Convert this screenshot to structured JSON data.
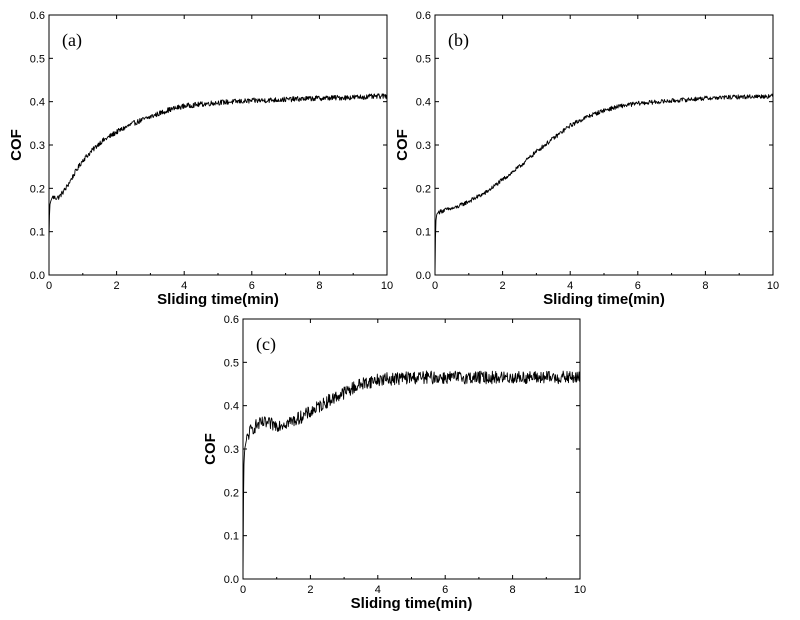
{
  "figure": {
    "panels": [
      "(a)",
      "(b)",
      "(c)"
    ]
  },
  "chart_data": [
    {
      "type": "line",
      "panel_label": "(a)",
      "xlabel": "Sliding time(min)",
      "ylabel": "COF",
      "xlim": [
        0,
        10
      ],
      "ylim": [
        0,
        0.6
      ],
      "xticks": [
        0,
        2,
        4,
        6,
        8,
        10
      ],
      "yticks": [
        0.0,
        0.1,
        0.2,
        0.3,
        0.4,
        0.5,
        0.6
      ],
      "grid": false,
      "noise_amplitude": 0.006,
      "series": [
        {
          "x": [
            0,
            0.02,
            0.05,
            0.1,
            0.2,
            0.3,
            0.5,
            0.8,
            1.0,
            1.5,
            2.0,
            2.5,
            3.0,
            3.5,
            4.0,
            5.0,
            6.0,
            7.0,
            8.0,
            9.0,
            10.0
          ],
          "y": [
            0.08,
            0.16,
            0.17,
            0.18,
            0.178,
            0.18,
            0.2,
            0.24,
            0.265,
            0.305,
            0.33,
            0.35,
            0.365,
            0.38,
            0.39,
            0.398,
            0.402,
            0.405,
            0.408,
            0.41,
            0.413
          ]
        }
      ]
    },
    {
      "type": "line",
      "panel_label": "(b)",
      "xlabel": "Sliding time(min)",
      "ylabel": "COF",
      "xlim": [
        0,
        10
      ],
      "ylim": [
        0,
        0.6
      ],
      "xticks": [
        0,
        2,
        4,
        6,
        8,
        10
      ],
      "yticks": [
        0.0,
        0.1,
        0.2,
        0.3,
        0.4,
        0.5,
        0.6
      ],
      "grid": false,
      "noise_amplitude": 0.005,
      "series": [
        {
          "x": [
            0,
            0.02,
            0.05,
            0.1,
            0.3,
            0.6,
            1.0,
            1.5,
            2.0,
            2.5,
            3.0,
            3.5,
            4.0,
            4.5,
            5.0,
            5.5,
            6.0,
            7.0,
            8.0,
            9.0,
            10.0
          ],
          "y": [
            0.0,
            0.12,
            0.14,
            0.145,
            0.15,
            0.155,
            0.17,
            0.19,
            0.22,
            0.25,
            0.285,
            0.315,
            0.345,
            0.365,
            0.38,
            0.39,
            0.396,
            0.402,
            0.408,
            0.411,
            0.413
          ]
        }
      ]
    },
    {
      "type": "line",
      "panel_label": "(c)",
      "xlabel": "Sliding time(min)",
      "ylabel": "COF",
      "xlim": [
        0,
        10
      ],
      "ylim": [
        0,
        0.6
      ],
      "xticks": [
        0,
        2,
        4,
        6,
        8,
        10
      ],
      "yticks": [
        0.0,
        0.1,
        0.2,
        0.3,
        0.4,
        0.5,
        0.6
      ],
      "grid": false,
      "noise_amplitude": 0.015,
      "series": [
        {
          "x": [
            0,
            0.02,
            0.05,
            0.1,
            0.2,
            0.4,
            0.6,
            1.0,
            1.5,
            2.0,
            2.5,
            3.0,
            3.5,
            4.0,
            5.0,
            6.0,
            7.0,
            8.0,
            9.0,
            10.0
          ],
          "y": [
            0.0,
            0.25,
            0.3,
            0.32,
            0.34,
            0.355,
            0.36,
            0.355,
            0.365,
            0.385,
            0.41,
            0.43,
            0.45,
            0.46,
            0.465,
            0.465,
            0.465,
            0.465,
            0.465,
            0.465
          ]
        }
      ]
    }
  ]
}
